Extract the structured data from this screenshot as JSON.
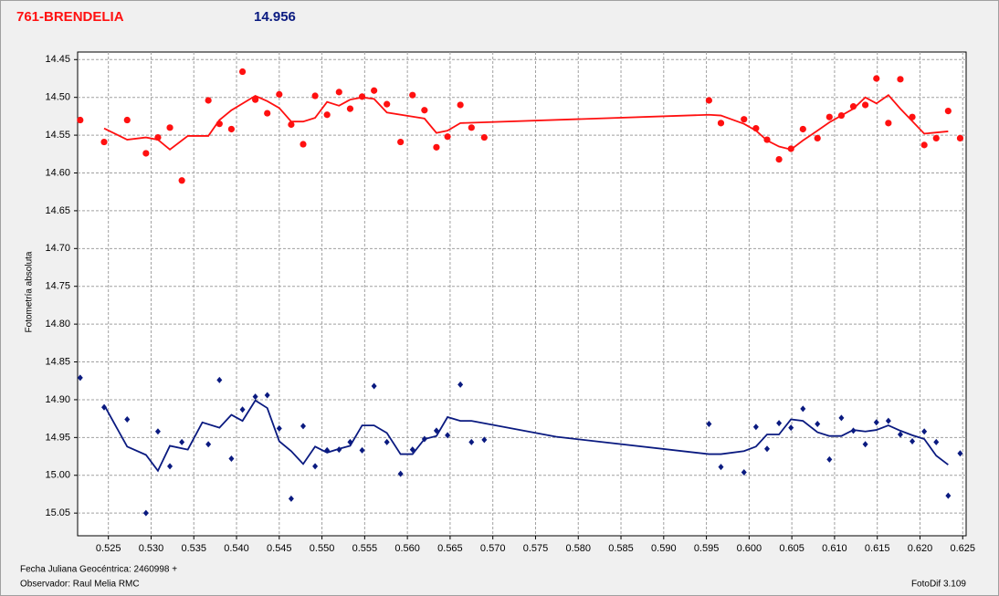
{
  "chart_data": {
    "type": "scatter",
    "title": "761-BRENDELIA",
    "subtitle": "14.956",
    "y_label": "Fotometría absoluta",
    "x_label": "Fecha Juliana Geocéntrica: 2460998 +",
    "observer": "Observador: Raul Melia RMC",
    "software": "FotoDif 3.109",
    "xlim": [
      0.5214,
      0.6254
    ],
    "ylim": [
      14.44,
      15.08
    ],
    "y_inverted": true,
    "grid": true,
    "xticks": [
      0.525,
      {
        "value": 0.53,
        "label": "0.530"
      },
      0.535,
      {
        "value": 0.54,
        "label": "0.540"
      },
      0.545,
      {
        "value": 0.55,
        "label": "0.550"
      },
      0.555,
      {
        "value": 0.56,
        "label": "0.560"
      },
      0.565,
      {
        "value": 0.57,
        "label": "0.570"
      },
      0.575,
      {
        "value": 0.58,
        "label": "0.580"
      },
      0.585,
      {
        "value": 0.59,
        "label": "0.590"
      },
      0.595,
      {
        "value": 0.6,
        "label": "0.600"
      },
      0.605,
      {
        "value": 0.61,
        "label": "0.610"
      },
      0.615,
      {
        "value": 0.62,
        "label": "0.620"
      },
      0.625
    ],
    "yticks": [
      14.45,
      {
        "value": 14.5,
        "label": "14.50"
      },
      14.55,
      {
        "value": 14.6,
        "label": "14.60"
      },
      14.65,
      {
        "value": 14.7,
        "label": "14.70"
      },
      14.75,
      {
        "value": 14.8,
        "label": "14.80"
      },
      14.85,
      {
        "value": 14.9,
        "label": "14.90"
      },
      14.95,
      {
        "value": 15,
        "label": "15.00"
      },
      15.05
    ],
    "series": [
      {
        "kind": "scatter",
        "marker": "circle",
        "color": "#ff1010",
        "x": [
          0.5217,
          0.5245,
          0.5272,
          0.5294,
          0.5308,
          0.5322,
          0.5336,
          0.5367,
          0.538,
          0.5394,
          0.5407,
          0.5422,
          0.5436,
          0.545,
          0.5464,
          0.5478,
          0.5492,
          0.5506,
          0.552,
          0.5533,
          0.5547,
          0.5561,
          0.5576,
          0.5592,
          0.5606,
          0.562,
          0.5634,
          0.5647,
          0.5662,
          0.5675,
          0.569,
          0.5953,
          0.5967,
          0.5994,
          0.6008,
          0.6021,
          0.6035,
          0.6049,
          0.6063,
          0.608,
          0.6094,
          0.6108,
          0.6122,
          0.6136,
          0.6149,
          0.6163,
          0.6177,
          0.6191,
          0.6205,
          0.6219,
          0.6233,
          0.6247
        ],
        "values": [
          14.53,
          14.559,
          14.53,
          14.574,
          14.553,
          14.54,
          14.61,
          14.504,
          14.535,
          14.542,
          14.466,
          14.503,
          14.521,
          14.496,
          14.536,
          14.562,
          14.498,
          14.523,
          14.493,
          14.515,
          14.499,
          14.491,
          14.509,
          14.559,
          14.497,
          14.517,
          14.566,
          14.552,
          14.51,
          14.54,
          14.553,
          14.504,
          14.534,
          14.529,
          14.541,
          14.556,
          14.582,
          14.568,
          14.542,
          14.554,
          14.526,
          14.524,
          14.512,
          14.51,
          14.475,
          14.534,
          14.476,
          14.526,
          14.563,
          14.554,
          14.518,
          14.554
        ]
      },
      {
        "kind": "line",
        "color": "#ff1010",
        "x": [
          0.5245,
          0.5272,
          0.5294,
          0.5308,
          0.5322,
          0.5343,
          0.5367,
          0.538,
          0.5394,
          0.5422,
          0.5436,
          0.545,
          0.5464,
          0.5478,
          0.5492,
          0.5506,
          0.552,
          0.5533,
          0.5547,
          0.5561,
          0.5576,
          0.562,
          0.5634,
          0.5647,
          0.5662,
          0.5953,
          0.5967,
          0.5994,
          0.6008,
          0.6021,
          0.6035,
          0.6049,
          0.6063,
          0.608,
          0.6094,
          0.6108,
          0.6122,
          0.6136,
          0.6149,
          0.6163,
          0.6177,
          0.6205,
          0.6233
        ],
        "values": [
          14.541,
          14.556,
          14.553,
          14.556,
          14.569,
          14.551,
          14.551,
          14.53,
          14.517,
          14.498,
          14.505,
          14.514,
          14.532,
          14.532,
          14.527,
          14.506,
          14.511,
          14.503,
          14.5,
          14.502,
          14.52,
          14.528,
          14.547,
          14.544,
          14.534,
          14.523,
          14.524,
          14.535,
          14.544,
          14.557,
          14.565,
          14.569,
          14.557,
          14.544,
          14.533,
          14.524,
          14.515,
          14.5,
          14.508,
          14.497,
          14.515,
          14.548,
          14.545
        ]
      },
      {
        "kind": "scatter",
        "marker": "diamond",
        "color": "#0a1a80",
        "x": [
          0.5217,
          0.5245,
          0.5272,
          0.5294,
          0.5308,
          0.5322,
          0.5336,
          0.5367,
          0.538,
          0.5394,
          0.5407,
          0.5422,
          0.5436,
          0.545,
          0.5464,
          0.5478,
          0.5492,
          0.5506,
          0.552,
          0.5533,
          0.5547,
          0.5561,
          0.5576,
          0.5592,
          0.5606,
          0.562,
          0.5634,
          0.5647,
          0.5662,
          0.5675,
          0.569,
          0.5953,
          0.5967,
          0.5994,
          0.6008,
          0.6021,
          0.6035,
          0.6049,
          0.6063,
          0.608,
          0.6094,
          0.6108,
          0.6122,
          0.6136,
          0.6149,
          0.6163,
          0.6177,
          0.6191,
          0.6205,
          0.6219,
          0.6233,
          0.6247
        ],
        "values": [
          14.871,
          14.91,
          14.926,
          15.05,
          14.942,
          14.988,
          14.956,
          14.959,
          14.874,
          14.978,
          14.913,
          14.896,
          14.894,
          14.938,
          15.031,
          14.935,
          14.988,
          14.967,
          14.966,
          14.956,
          14.967,
          14.882,
          14.956,
          14.998,
          14.966,
          14.952,
          14.941,
          14.947,
          14.88,
          14.956,
          14.953,
          14.932,
          14.989,
          14.996,
          14.936,
          14.965,
          14.931,
          14.937,
          14.912,
          14.932,
          14.979,
          14.924,
          14.941,
          14.959,
          14.93,
          14.928,
          14.946,
          14.955,
          14.942,
          14.956,
          15.027,
          14.971
        ]
      },
      {
        "kind": "line",
        "color": "#0a1a80",
        "x": [
          0.5245,
          0.5272,
          0.5294,
          0.5308,
          0.5322,
          0.5343,
          0.536,
          0.538,
          0.5394,
          0.5407,
          0.5422,
          0.5436,
          0.545,
          0.5464,
          0.5478,
          0.5492,
          0.5506,
          0.552,
          0.5533,
          0.5547,
          0.5561,
          0.5576,
          0.5592,
          0.5606,
          0.562,
          0.5634,
          0.5647,
          0.5662,
          0.5675,
          0.5774,
          0.5953,
          0.5967,
          0.5994,
          0.6008,
          0.6021,
          0.6035,
          0.6049,
          0.6063,
          0.608,
          0.6094,
          0.6108,
          0.6122,
          0.6136,
          0.6149,
          0.6163,
          0.6177,
          0.6191,
          0.6205,
          0.6219,
          0.6233
        ],
        "values": [
          14.907,
          14.962,
          14.973,
          14.994,
          14.961,
          14.966,
          14.93,
          14.937,
          14.92,
          14.928,
          14.901,
          14.911,
          14.955,
          14.968,
          14.985,
          14.962,
          14.97,
          14.965,
          14.961,
          14.934,
          14.934,
          14.944,
          14.972,
          14.972,
          14.952,
          14.948,
          14.923,
          14.928,
          14.928,
          14.949,
          14.972,
          14.972,
          14.968,
          14.962,
          14.946,
          14.946,
          14.926,
          14.928,
          14.943,
          14.948,
          14.948,
          14.94,
          14.942,
          14.94,
          14.934,
          14.941,
          14.947,
          14.952,
          14.974,
          14.986
        ]
      }
    ]
  }
}
